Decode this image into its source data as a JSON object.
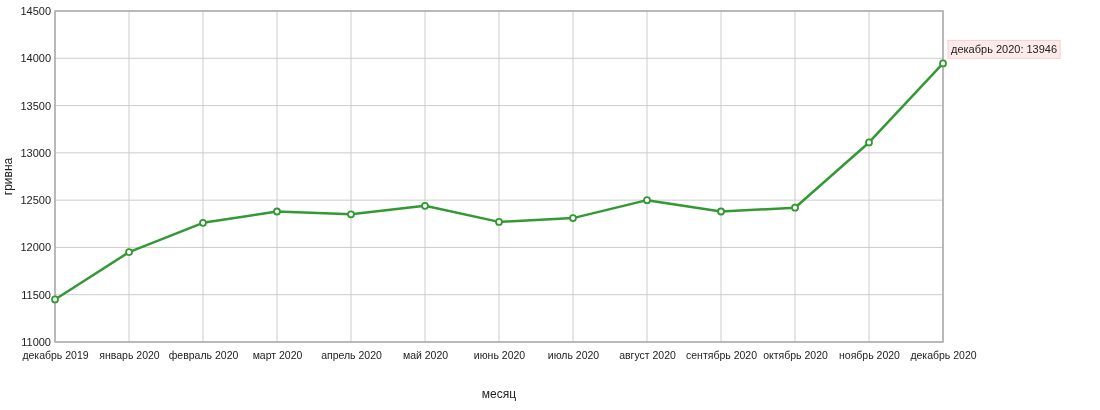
{
  "chart_data": {
    "type": "line",
    "xlabel": "месяц",
    "ylabel": "гривна",
    "categories": [
      "декабрь 2019",
      "январь 2020",
      "февраль 2020",
      "март 2020",
      "апрель 2020",
      "май 2020",
      "июнь 2020",
      "июль 2020",
      "август 2020",
      "сентябрь 2020",
      "октябрь 2020",
      "ноябрь 2020",
      "декабрь 2020"
    ],
    "series": [
      {
        "color": "#339933",
        "values": [
          11450,
          11950,
          12260,
          12380,
          12350,
          12440,
          12270,
          12310,
          12500,
          12380,
          12420,
          13110,
          13946
        ]
      }
    ],
    "ylim": [
      11000,
      14500
    ],
    "yticks": [
      11000,
      11500,
      12000,
      12500,
      13000,
      13500,
      14000,
      14500
    ],
    "grid": true,
    "marker": "circle",
    "line_style": "solid",
    "annotations": [
      {
        "text": "декабрь 2020: 13946",
        "x": "декабрь 2020",
        "y": 13946
      }
    ]
  }
}
